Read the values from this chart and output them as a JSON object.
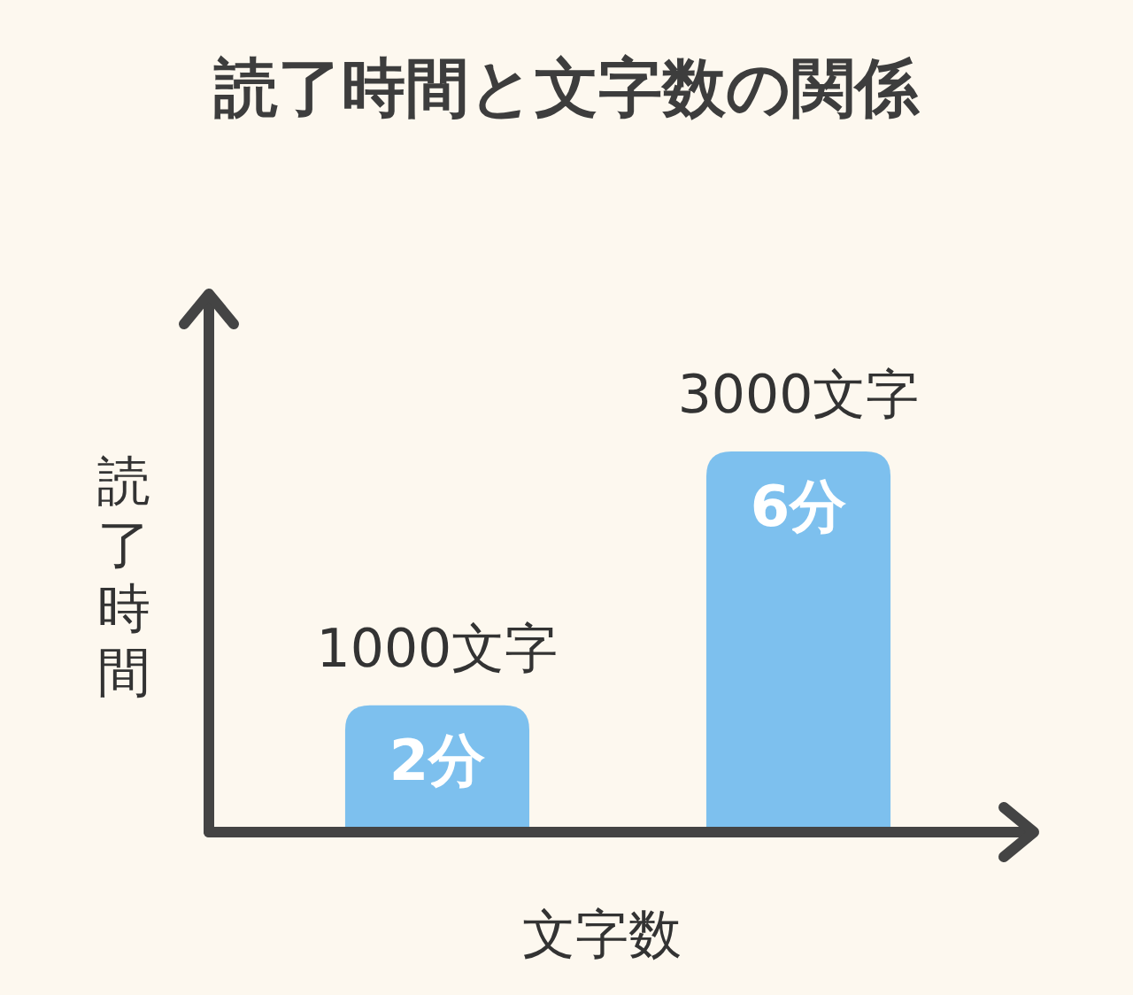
{
  "chart_data": {
    "type": "bar",
    "title": "読了時間と文字数の関係",
    "xlabel": "文字数",
    "ylabel": "読了時間",
    "categories": [
      "1000文字",
      "3000文字"
    ],
    "values": [
      2,
      6
    ],
    "value_labels": [
      "2分",
      "6分"
    ],
    "color": "#7dc0ee"
  }
}
